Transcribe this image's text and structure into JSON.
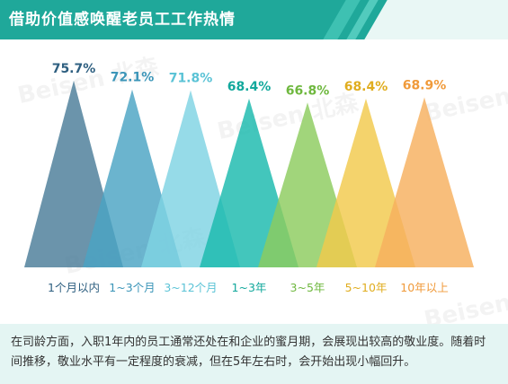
{
  "header": {
    "title": "借助价值感唤醒老员工工作热情"
  },
  "watermark": {
    "text": "Beisen 北森"
  },
  "colors": {
    "header_bg": "#1fa89a",
    "footer_bg": "#e4f5f3"
  },
  "chart_data": {
    "type": "bar",
    "title": "",
    "xlabel": "",
    "ylabel": "",
    "ylim": [
      0,
      100
    ],
    "grid": false,
    "legend": "none",
    "categories": [
      "1个月以内",
      "1~3个月",
      "3~12个月",
      "1~3年",
      "3~5年",
      "5~10年",
      "10年以上"
    ],
    "values": [
      75.7,
      72.1,
      71.8,
      68.4,
      66.8,
      68.4,
      68.9
    ],
    "value_labels": [
      "75.7%",
      "72.1%",
      "71.8%",
      "68.4%",
      "66.8%",
      "68.4%",
      "68.9%"
    ],
    "colors": [
      "#4a7c99",
      "#4ba3c3",
      "#7fd3e3",
      "#1ab9ad",
      "#8ccc5e",
      "#f2c94c",
      "#f7b05e"
    ],
    "label_colors": [
      "#2e5f80",
      "#3b95b8",
      "#5bc3d6",
      "#12a89c",
      "#6fb83f",
      "#e0ad1f",
      "#f09a3a"
    ]
  },
  "footer": {
    "text": "在司龄方面，入职1年内的员工通常还处在和企业的蜜月期，会展现出较高的敬业度。随着时间推移，敬业水平有一定程度的衰减，但在5年左右时，会开始出现小幅回升。"
  }
}
